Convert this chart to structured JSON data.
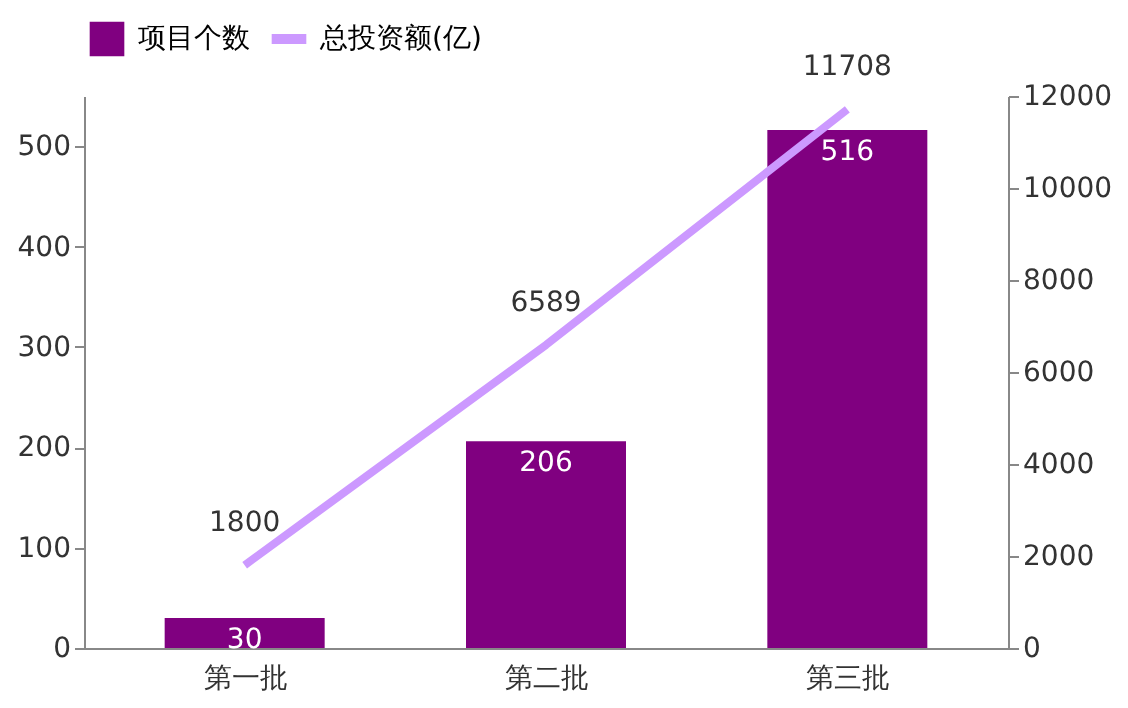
{
  "chart_data": {
    "type": "bar",
    "categories": [
      "第一批",
      "第二批",
      "第三批"
    ],
    "series": [
      {
        "name": "项目个数",
        "color": "#800080",
        "values": [
          30,
          206,
          516
        ]
      },
      {
        "name": "总投资额(亿)",
        "type": "line",
        "axis": "y2",
        "color": "#cc99ff",
        "values": [
          1800,
          6589,
          11708
        ]
      }
    ],
    "ylim": [
      0,
      550
    ],
    "yticks": [
      0,
      100,
      200,
      300,
      400,
      500
    ],
    "y2lim": [
      0,
      12000
    ],
    "y2ticks": [
      0,
      2000,
      4000,
      6000,
      8000,
      10000,
      12000
    ],
    "data_labels": true,
    "legend": "top",
    "grid": false,
    "marker": "none",
    "line_style": "solid"
  }
}
